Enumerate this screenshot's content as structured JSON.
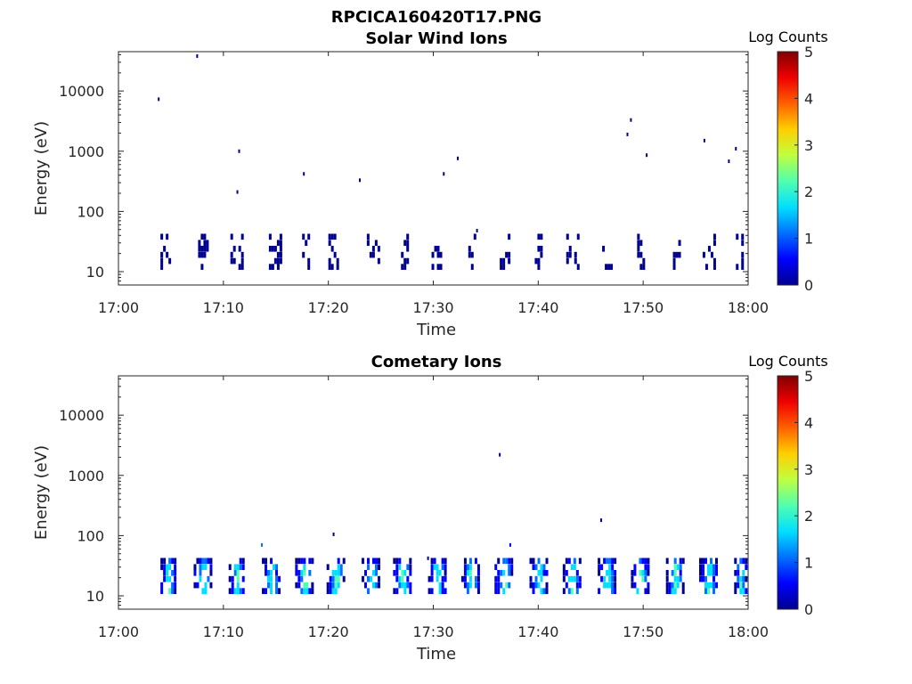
{
  "figure": {
    "title": "RPCICA160420T17.PNG"
  },
  "colormap": [
    "#00008f",
    "#0000ff",
    "#0070ff",
    "#00dfff",
    "#50ffaf",
    "#bfff40",
    "#ffcf00",
    "#ff6000",
    "#ef0000",
    "#800000"
  ],
  "chart_data": [
    {
      "type": "heatmap",
      "title": "Solar Wind Ions",
      "xlabel": "Time",
      "ylabel": "Energy (eV)",
      "xlim": [
        "17:00",
        "18:00"
      ],
      "xticks": [
        "17:00",
        "17:10",
        "17:20",
        "17:30",
        "17:40",
        "17:50",
        "18:00"
      ],
      "yscale": "log",
      "ylim": [
        6,
        45000
      ],
      "yticks": [
        10,
        100,
        1000,
        10000
      ],
      "yticklabels": [
        "10",
        "100",
        "1000",
        "10000"
      ],
      "colorbar": {
        "label": "Log Counts",
        "range": [
          0,
          5
        ],
        "ticks": [
          "0",
          "1",
          "2",
          "3",
          "4",
          "5"
        ]
      },
      "points": [
        {
          "t": "17:03:50",
          "e": 7300,
          "c": 0.2
        },
        {
          "t": "17:07:30",
          "e": 38000,
          "c": 0.2
        },
        {
          "t": "17:11:30",
          "e": 1000,
          "c": 0.2
        },
        {
          "t": "17:11:20",
          "e": 210,
          "c": 0.2
        },
        {
          "t": "17:17:40",
          "e": 420,
          "c": 0.2
        },
        {
          "t": "17:23:00",
          "e": 330,
          "c": 0.2
        },
        {
          "t": "17:31:00",
          "e": 420,
          "c": 0.2
        },
        {
          "t": "17:32:20",
          "e": 760,
          "c": 0.2
        },
        {
          "t": "17:34:10",
          "e": 48,
          "c": 0.2
        },
        {
          "t": "17:48:30",
          "e": 1900,
          "c": 0.2
        },
        {
          "t": "17:48:50",
          "e": 3300,
          "c": 0.2
        },
        {
          "t": "17:50:20",
          "e": 860,
          "c": 0.2
        },
        {
          "t": "17:55:50",
          "e": 1500,
          "c": 0.2
        },
        {
          "t": "17:58:10",
          "e": 680,
          "c": 0.2
        },
        {
          "t": "17:58:50",
          "e": 1100,
          "c": 0.2
        }
      ],
      "bursts": [
        {
          "start": "17:04:00",
          "end": "17:05:20",
          "level": 0.2
        },
        {
          "start": "17:07:20",
          "end": "17:08:40",
          "level": 0.2
        },
        {
          "start": "17:10:40",
          "end": "17:11:50",
          "level": 0.2
        },
        {
          "start": "17:14:20",
          "end": "17:15:30",
          "level": 0.2
        },
        {
          "start": "17:17:30",
          "end": "17:18:10",
          "level": 0.2
        },
        {
          "start": "17:20:00",
          "end": "17:21:20",
          "level": 0.2
        },
        {
          "start": "17:23:40",
          "end": "17:24:50",
          "level": 0.2
        },
        {
          "start": "17:26:40",
          "end": "17:27:50",
          "level": 0.2
        },
        {
          "start": "17:29:50",
          "end": "17:31:00",
          "level": 0.2
        },
        {
          "start": "17:33:20",
          "end": "17:34:00",
          "level": 0.2
        },
        {
          "start": "17:36:20",
          "end": "17:37:20",
          "level": 0.2
        },
        {
          "start": "17:39:40",
          "end": "17:40:30",
          "level": 0.2
        },
        {
          "start": "17:42:40",
          "end": "17:43:50",
          "level": 0.2
        },
        {
          "start": "17:45:50",
          "end": "17:47:00",
          "level": 0.2
        },
        {
          "start": "17:49:10",
          "end": "17:50:10",
          "level": 0.2
        },
        {
          "start": "17:52:50",
          "end": "17:53:40",
          "level": 0.2
        },
        {
          "start": "17:55:40",
          "end": "17:56:50",
          "level": 0.2
        },
        {
          "start": "17:58:50",
          "end": "17:59:40",
          "level": 0.2
        }
      ]
    },
    {
      "type": "heatmap",
      "title": "Cometary Ions",
      "xlabel": "Time",
      "ylabel": "Energy (eV)",
      "xlim": [
        "17:00",
        "18:00"
      ],
      "xticks": [
        "17:00",
        "17:10",
        "17:20",
        "17:30",
        "17:40",
        "17:50",
        "18:00"
      ],
      "yscale": "log",
      "ylim": [
        6,
        45000
      ],
      "yticks": [
        10,
        100,
        1000,
        10000
      ],
      "yticklabels": [
        "10",
        "100",
        "1000",
        "10000"
      ],
      "colorbar": {
        "label": "Log Counts",
        "range": [
          0,
          5
        ],
        "ticks": [
          "0",
          "1",
          "2",
          "3",
          "4",
          "5"
        ]
      },
      "points": [
        {
          "t": "17:13:40",
          "e": 70,
          "c": 1.3
        },
        {
          "t": "17:20:30",
          "e": 105,
          "c": 0.2
        },
        {
          "t": "17:36:20",
          "e": 2200,
          "c": 0.2
        },
        {
          "t": "17:37:20",
          "e": 70,
          "c": 0.5
        },
        {
          "t": "17:46:00",
          "e": 180,
          "c": 0.3
        },
        {
          "t": "17:29:30",
          "e": 42,
          "c": 0.2
        }
      ],
      "bursts": [
        {
          "start": "17:04:00",
          "end": "17:05:30",
          "level": 1.8
        },
        {
          "start": "17:07:10",
          "end": "17:08:50",
          "level": 1.8
        },
        {
          "start": "17:10:30",
          "end": "17:12:00",
          "level": 1.8
        },
        {
          "start": "17:13:40",
          "end": "17:15:20",
          "level": 1.8
        },
        {
          "start": "17:16:50",
          "end": "17:18:30",
          "level": 1.8
        },
        {
          "start": "17:19:50",
          "end": "17:21:40",
          "level": 1.8
        },
        {
          "start": "17:23:10",
          "end": "17:25:00",
          "level": 1.8
        },
        {
          "start": "17:26:10",
          "end": "17:28:00",
          "level": 1.8
        },
        {
          "start": "17:29:30",
          "end": "17:31:20",
          "level": 1.8
        },
        {
          "start": "17:32:40",
          "end": "17:34:30",
          "level": 1.8
        },
        {
          "start": "17:35:50",
          "end": "17:37:40",
          "level": 1.8
        },
        {
          "start": "17:39:10",
          "end": "17:41:00",
          "level": 1.8
        },
        {
          "start": "17:42:20",
          "end": "17:44:10",
          "level": 1.8
        },
        {
          "start": "17:45:40",
          "end": "17:47:30",
          "level": 1.8
        },
        {
          "start": "17:48:50",
          "end": "17:50:40",
          "level": 1.8
        },
        {
          "start": "17:52:10",
          "end": "17:54:00",
          "level": 1.8
        },
        {
          "start": "17:55:20",
          "end": "17:57:00",
          "level": 1.8
        },
        {
          "start": "17:58:40",
          "end": "17:59:50",
          "level": 1.8
        }
      ]
    }
  ]
}
